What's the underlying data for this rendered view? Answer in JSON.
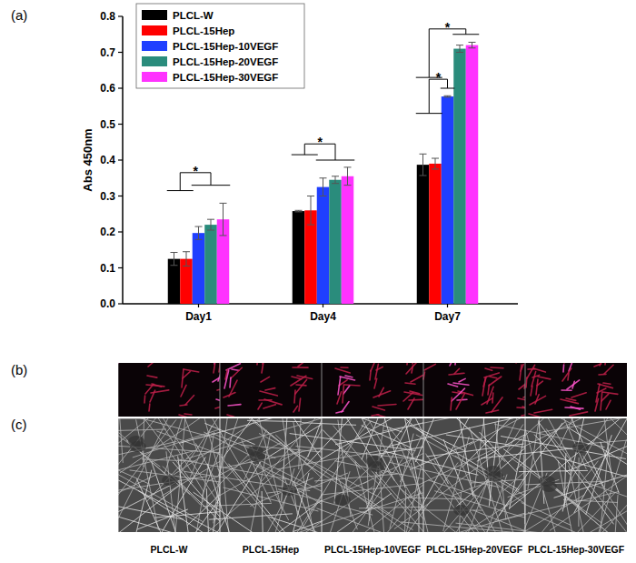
{
  "chart_data": {
    "type": "bar",
    "title": "(a)",
    "y_label": "Abs 450nm",
    "categories": [
      "Day1",
      "Day4",
      "Day7"
    ],
    "series": [
      {
        "name": "PLCL-W",
        "color": "#000000",
        "values": [
          0.125,
          0.258,
          0.387
        ],
        "errors": [
          0.018,
          0.002,
          0.03
        ]
      },
      {
        "name": "PLCL-15Hep",
        "color": "#ff0000",
        "values": [
          0.125,
          0.26,
          0.39
        ],
        "errors": [
          0.02,
          0.04,
          0.015
        ]
      },
      {
        "name": "PLCL-15Hep-10VEGF",
        "color": "#1f3fff",
        "values": [
          0.197,
          0.325,
          0.577
        ],
        "errors": [
          0.018,
          0.025,
          0.002
        ]
      },
      {
        "name": "PLCL-15Hep-20VEGF",
        "color": "#2a8c7c",
        "values": [
          0.22,
          0.345,
          0.71
        ],
        "errors": [
          0.015,
          0.01,
          0.01
        ]
      },
      {
        "name": "PLCL-15Hep-30VEGF",
        "color": "#ff33ff",
        "values": [
          0.235,
          0.355,
          0.72
        ],
        "errors": [
          0.045,
          0.025,
          0.008
        ]
      }
    ],
    "ylim": [
      0,
      0.8
    ],
    "yticks": [
      {
        "value": 0,
        "label": "0.0"
      },
      0.1,
      0.2,
      0.3,
      0.4,
      0.5,
      0.6,
      0.7,
      0.8
    ],
    "legend": "upper left",
    "significance": [
      {
        "category": 0,
        "groups": [
          [
            0,
            1
          ],
          [
            2,
            3,
            4
          ]
        ],
        "levels": [
          0.315,
          0.33
        ],
        "top": 0.365,
        "text": "*"
      },
      {
        "category": 1,
        "groups": [
          [
            0,
            1
          ],
          [
            2,
            3,
            4
          ]
        ],
        "levels": [
          0.415,
          0.4
        ],
        "top": 0.445,
        "text": "*"
      },
      {
        "category": 2,
        "groups": [
          [
            0,
            1
          ],
          [
            2
          ]
        ],
        "levels": [
          0.53,
          0.6
        ],
        "top": 0.625,
        "text": "*"
      },
      {
        "category": 2,
        "groups": [
          [
            0,
            1
          ],
          [
            3,
            4
          ]
        ],
        "levels": [
          0.63,
          0.75
        ],
        "top": 0.765,
        "text": "*"
      }
    ]
  },
  "figure": {
    "panels": [
      "(b)",
      "(c)"
    ],
    "image_labels": [
      "PLCL-W",
      "PLCL-15Hep",
      "PLCL-15Hep-10VEGF",
      "PLCL-15Hep-20VEGF",
      "PLCL-15Hep-30VEGF"
    ]
  }
}
